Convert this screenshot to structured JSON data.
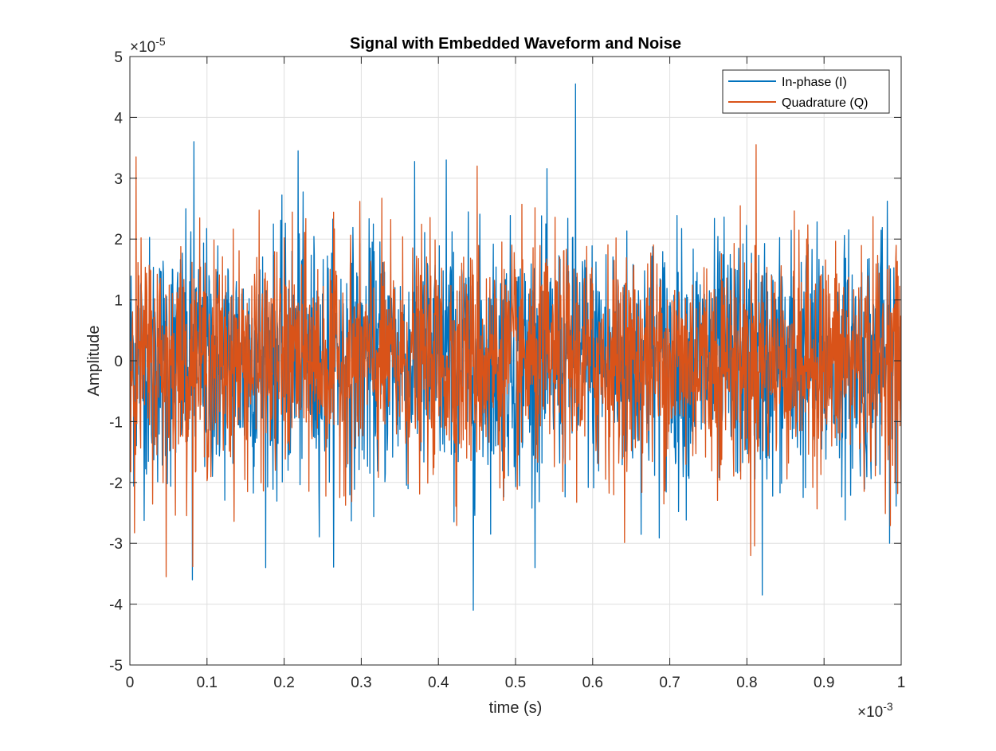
{
  "chart_data": {
    "type": "line",
    "title": "Signal with Embedded Waveform and Noise",
    "xlabel": "time (s)",
    "ylabel": "Amplitude",
    "xlim": [
      0,
      0.001
    ],
    "ylim": [
      -5e-05,
      5e-05
    ],
    "x_tick_labels": [
      "0",
      "0.1",
      "0.2",
      "0.3",
      "0.4",
      "0.5",
      "0.6",
      "0.7",
      "0.8",
      "0.9",
      "1"
    ],
    "y_tick_labels": [
      "-5",
      "-4",
      "-3",
      "-2",
      "-1",
      "0",
      "1",
      "2",
      "3",
      "4",
      "5"
    ],
    "x_exponent": {
      "base": "×10",
      "power": "-3"
    },
    "y_exponent": {
      "base": "×10",
      "power": "-5"
    },
    "grid": true,
    "legend_position": "top-right",
    "series": [
      {
        "name": "In-phase (I)",
        "color": "#0072BD",
        "sigma": 1e-05,
        "peaks": [
          {
            "x": 8.3e-05,
            "y": 3.6e-05
          },
          {
            "x": 8.1e-05,
            "y": -3.6e-05
          },
          {
            "x": 0.000218,
            "y": 3.45e-05
          },
          {
            "x": 0.00041,
            "y": 3.3e-05
          },
          {
            "x": 0.000445,
            "y": -4.1e-05
          },
          {
            "x": 0.000578,
            "y": 4.55e-05
          },
          {
            "x": 0.00082,
            "y": -3.85e-05
          }
        ]
      },
      {
        "name": "Quadrature (Q)",
        "color": "#D95319",
        "sigma": 9e-06,
        "peaks": [
          {
            "x": 8e-06,
            "y": 3.35e-05
          },
          {
            "x": 4.7e-05,
            "y": -3.55e-05
          },
          {
            "x": 0.000812,
            "y": 3.55e-05
          },
          {
            "x": 0.000805,
            "y": -3.2e-05
          },
          {
            "x": 0.00045,
            "y": 3.2e-05
          }
        ]
      }
    ]
  }
}
